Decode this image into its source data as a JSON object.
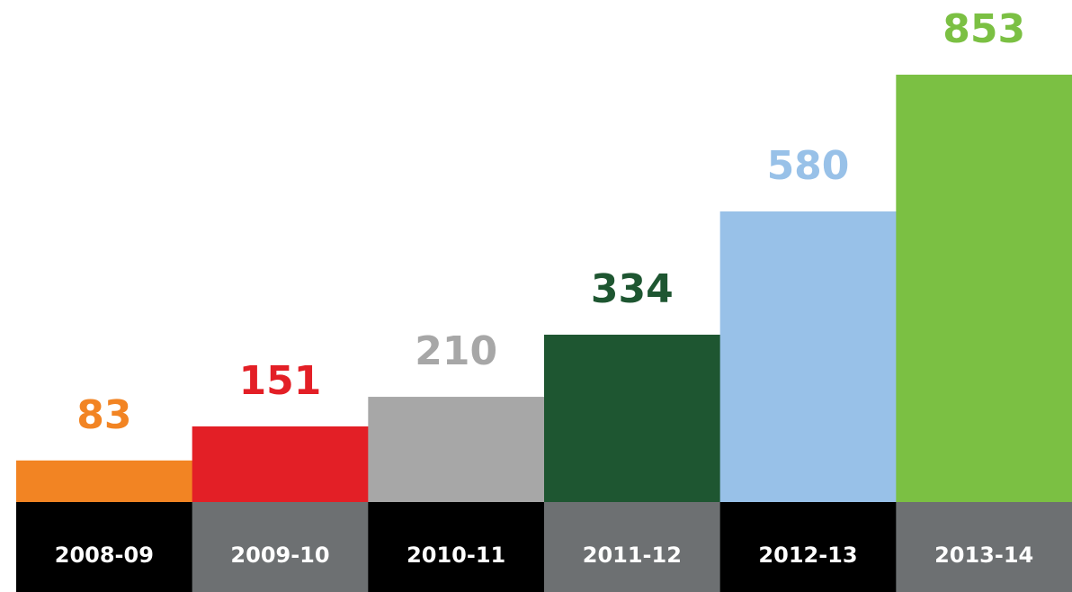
{
  "chart_data": {
    "type": "bar",
    "categories": [
      "2008-09",
      "2009-10",
      "2010-11",
      "2011-12",
      "2012-13",
      "2013-14"
    ],
    "values": [
      83,
      151,
      210,
      334,
      580,
      853
    ],
    "colors": [
      "#f28423",
      "#e31f26",
      "#a7a7a7",
      "#1e5631",
      "#98c1e8",
      "#7bc043"
    ]
  }
}
